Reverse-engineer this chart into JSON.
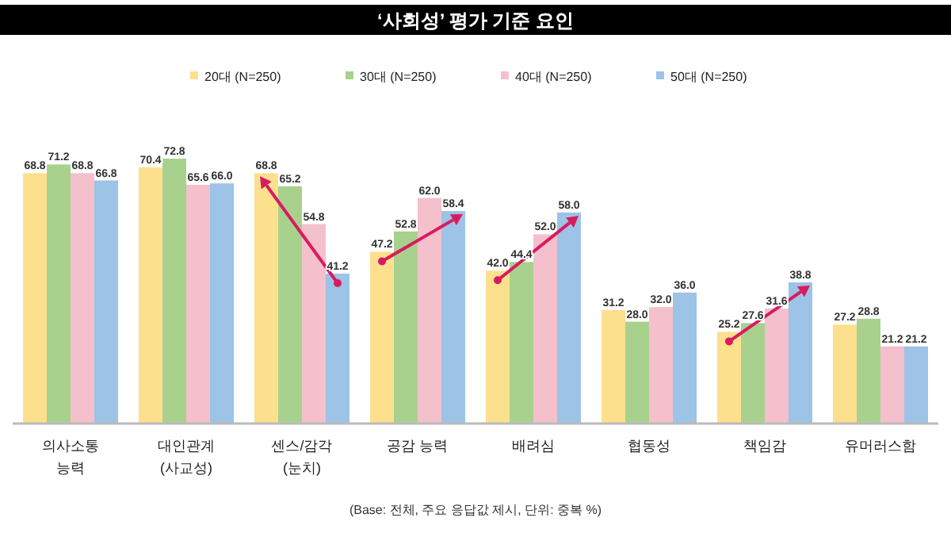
{
  "chart_data": {
    "type": "bar",
    "title": "‘사회성’ 평가 기준 요인",
    "categories": [
      "의사소통\n능력",
      "대인관계\n(사교성)",
      "센스/감각\n(눈치)",
      "공감 능력",
      "배려심",
      "협동성",
      "책임감",
      "유머러스함"
    ],
    "series": [
      {
        "name": "20대 (N=250)",
        "color": "#fde08d",
        "values": [
          68.8,
          70.4,
          68.8,
          47.2,
          42.0,
          31.2,
          25.2,
          27.2
        ],
        "value_labels": [
          "68.8",
          "70.4",
          "68.8",
          "47.2",
          "42.0",
          "31.2",
          "25.2",
          "27.2"
        ]
      },
      {
        "name": "30대 (N=250)",
        "color": "#a9d18e",
        "values": [
          71.2,
          72.8,
          65.2,
          52.8,
          44.4,
          28.0,
          27.6,
          28.8
        ],
        "value_labels": [
          "71.2",
          "72.8",
          "65.2",
          "52.8",
          "44.4",
          "28.0",
          "27.6",
          "28.8"
        ]
      },
      {
        "name": "40대 (N=250)",
        "color": "#f4c0cc",
        "values": [
          68.8,
          65.6,
          54.8,
          62.0,
          52.0,
          32.0,
          31.6,
          21.2
        ],
        "value_labels": [
          "68.8",
          "65.6",
          "54.8",
          "62.0",
          "52.0",
          "32.0",
          "31.6",
          "21.2"
        ]
      },
      {
        "name": "50대 (N=250)",
        "color": "#9dc3e6",
        "values": [
          66.8,
          66.0,
          41.2,
          58.4,
          58.0,
          36.0,
          38.8,
          21.2
        ],
        "value_labels": [
          "66.8",
          "66.0",
          "41.2",
          "58.4",
          "58.0",
          "36.0",
          "38.8",
          "21.2"
        ]
      }
    ],
    "legend": "top",
    "annotations": [
      "(Base: 전체, 주요 응답값 제시, 단위: 중복 %)"
    ]
  }
}
